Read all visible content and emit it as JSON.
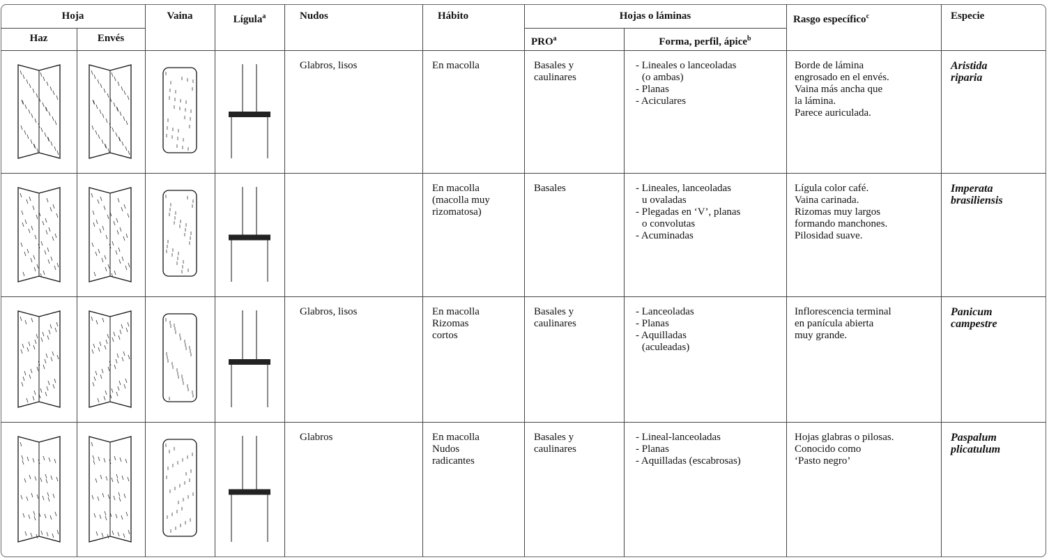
{
  "table": {
    "header_top": [
      {
        "text": "Hoja"
      },
      {
        "text": "Vaina"
      },
      {
        "text": "Lígula",
        "sup": "a"
      },
      {
        "text": "Nudos"
      },
      {
        "text": "Hábito"
      },
      {
        "text": "Hojas o láminas"
      },
      {
        "text": "Rasgo específico",
        "sup": "c"
      },
      {
        "text": "Especie"
      }
    ],
    "header_sub": [
      {
        "text": "Haz"
      },
      {
        "text": "Envés"
      },
      {
        "text": "PRO",
        "sup": "a"
      },
      {
        "text": "Forma, perfil, ápice",
        "sup": "b"
      }
    ],
    "rows": [
      {
        "nudos": [
          "Glabros, lisos"
        ],
        "habito": [
          "En macolla"
        ],
        "pro": [
          "Basales y",
          "caulinares"
        ],
        "forma": [
          "- Lineales o lanceoladas",
          "(o ambas)",
          "- Planas",
          "- Aciculares"
        ],
        "rasgo": [
          "Borde de lámina",
          "engrosado en el envés.",
          "Vaina más ancha que",
          "la lámina.",
          "Parece auriculada."
        ],
        "especie": [
          "Aristida",
          "riparia"
        ]
      },
      {
        "habito": [
          "En macolla",
          "(macolla muy",
          "rizomatosa)"
        ],
        "pro": [
          "Basales"
        ],
        "forma": [
          "- Lineales, lanceoladas",
          "u ovaladas",
          "- Plegadas en ‘V’, planas",
          "o convolutas",
          "- Acuminadas"
        ],
        "rasgo": [
          "Lígula color café.",
          "Vaina carinada.",
          "Rizomas muy largos",
          "formando manchones.",
          "Pilosidad suave."
        ],
        "especie": [
          "Imperata",
          "brasiliensis"
        ]
      },
      {
        "nudos": [
          "Glabros, lisos"
        ],
        "habito": [
          "En macolla",
          "Rizomas",
          "cortos"
        ],
        "pro": [
          "Basales y",
          "caulinares"
        ],
        "forma": [
          "- Lanceoladas",
          "- Planas",
          "- Aquilladas",
          "(aculeadas)"
        ],
        "rasgo": [
          "Inflorescencia terminal",
          "en panícula abierta",
          "muy grande."
        ],
        "especie": [
          "Panicum",
          "campestre"
        ]
      },
      {
        "nudos": [
          "Glabros"
        ],
        "habito": [
          "En macolla",
          "Nudos",
          "radicantes"
        ],
        "pro": [
          "Basales y",
          "caulinares"
        ],
        "forma": [
          "- Lineal-lanceoladas",
          "- Planas",
          "- Aquilladas (escabrosas)"
        ],
        "rasgo": [
          "Hojas glabras o pilosas.",
          "Conocido como",
          "‘Pasto negro’"
        ],
        "especie": [
          "Paspalum",
          "plicatulum"
        ]
      }
    ]
  }
}
